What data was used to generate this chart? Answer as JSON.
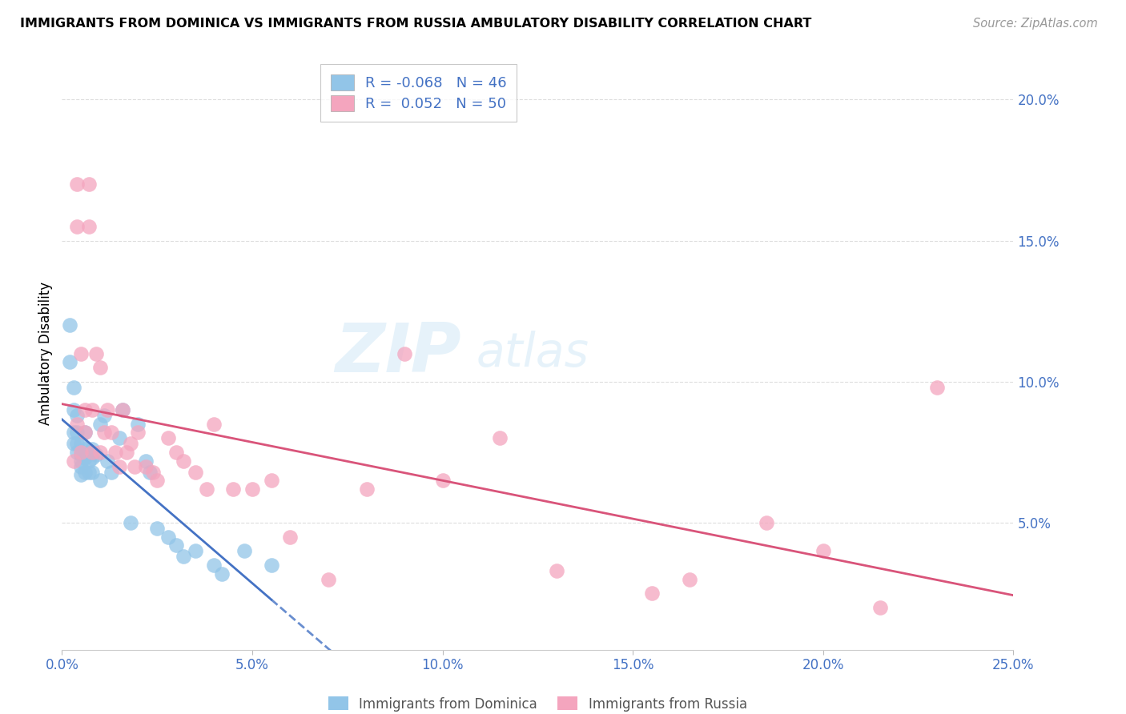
{
  "title": "IMMIGRANTS FROM DOMINICA VS IMMIGRANTS FROM RUSSIA AMBULATORY DISABILITY CORRELATION CHART",
  "source": "Source: ZipAtlas.com",
  "ylabel": "Ambulatory Disability",
  "xmin": 0.0,
  "xmax": 0.25,
  "ymin": 0.005,
  "ymax": 0.215,
  "ytick_positions": [
    0.05,
    0.1,
    0.15,
    0.2
  ],
  "ytick_labels": [
    "5.0%",
    "10.0%",
    "15.0%",
    "20.0%"
  ],
  "xtick_positions": [
    0.0,
    0.05,
    0.1,
    0.15,
    0.2,
    0.25
  ],
  "xtick_labels": [
    "0.0%",
    "5.0%",
    "10.0%",
    "15.0%",
    "20.0%",
    "25.0%"
  ],
  "legend_R_dominica": "-0.068",
  "legend_N_dominica": "46",
  "legend_R_russia": "0.052",
  "legend_N_russia": "50",
  "dominica_color": "#92C5E8",
  "russia_color": "#F4A5BE",
  "dominica_line_color": "#4472C4",
  "russia_line_color": "#D9547A",
  "watermark_zip": "ZIP",
  "watermark_atlas": "atlas",
  "dominica_x": [
    0.002,
    0.002,
    0.003,
    0.003,
    0.003,
    0.003,
    0.004,
    0.004,
    0.004,
    0.004,
    0.005,
    0.005,
    0.005,
    0.005,
    0.005,
    0.006,
    0.006,
    0.006,
    0.006,
    0.007,
    0.007,
    0.007,
    0.008,
    0.008,
    0.008,
    0.009,
    0.01,
    0.01,
    0.011,
    0.012,
    0.013,
    0.015,
    0.016,
    0.018,
    0.02,
    0.022,
    0.023,
    0.025,
    0.028,
    0.03,
    0.032,
    0.035,
    0.04,
    0.042,
    0.048,
    0.055
  ],
  "dominica_y": [
    0.12,
    0.107,
    0.098,
    0.09,
    0.082,
    0.078,
    0.088,
    0.082,
    0.078,
    0.075,
    0.078,
    0.074,
    0.072,
    0.07,
    0.067,
    0.082,
    0.076,
    0.073,
    0.068,
    0.075,
    0.072,
    0.068,
    0.076,
    0.073,
    0.068,
    0.074,
    0.085,
    0.065,
    0.088,
    0.072,
    0.068,
    0.08,
    0.09,
    0.05,
    0.085,
    0.072,
    0.068,
    0.048,
    0.045,
    0.042,
    0.038,
    0.04,
    0.035,
    0.032,
    0.04,
    0.035
  ],
  "russia_x": [
    0.003,
    0.004,
    0.004,
    0.004,
    0.005,
    0.005,
    0.006,
    0.006,
    0.007,
    0.007,
    0.008,
    0.008,
    0.009,
    0.01,
    0.01,
    0.011,
    0.012,
    0.013,
    0.014,
    0.015,
    0.016,
    0.017,
    0.018,
    0.019,
    0.02,
    0.022,
    0.024,
    0.025,
    0.028,
    0.03,
    0.032,
    0.035,
    0.038,
    0.04,
    0.045,
    0.05,
    0.055,
    0.06,
    0.07,
    0.08,
    0.09,
    0.1,
    0.115,
    0.13,
    0.155,
    0.165,
    0.185,
    0.2,
    0.215,
    0.23
  ],
  "russia_y": [
    0.072,
    0.17,
    0.155,
    0.085,
    0.11,
    0.075,
    0.09,
    0.082,
    0.17,
    0.155,
    0.09,
    0.075,
    0.11,
    0.105,
    0.075,
    0.082,
    0.09,
    0.082,
    0.075,
    0.07,
    0.09,
    0.075,
    0.078,
    0.07,
    0.082,
    0.07,
    0.068,
    0.065,
    0.08,
    0.075,
    0.072,
    0.068,
    0.062,
    0.085,
    0.062,
    0.062,
    0.065,
    0.045,
    0.03,
    0.062,
    0.11,
    0.065,
    0.08,
    0.033,
    0.025,
    0.03,
    0.05,
    0.04,
    0.02,
    0.098
  ]
}
